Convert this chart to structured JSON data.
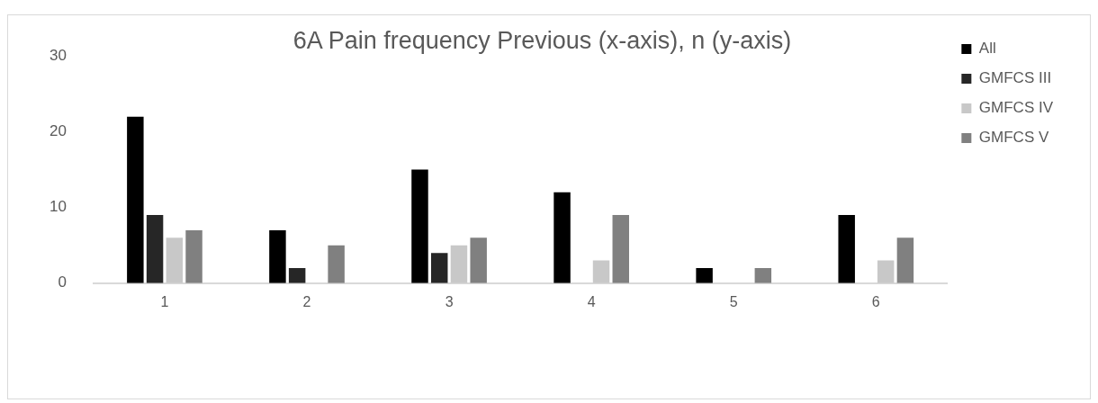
{
  "chart_data": {
    "type": "bar",
    "title": "6A Pain frequency Previous (x-axis), n (y-axis)",
    "categories": [
      "1",
      "2",
      "3",
      "4",
      "5",
      "6"
    ],
    "series": [
      {
        "name": "All",
        "color": "#000000",
        "values": [
          22,
          7,
          15,
          12,
          2,
          9
        ]
      },
      {
        "name": "GMFCS III",
        "color": "#262626",
        "values": [
          9,
          2,
          4,
          0,
          0,
          0
        ]
      },
      {
        "name": "GMFCS IV",
        "color": "#c8c8c8",
        "values": [
          6,
          0,
          5,
          3,
          0,
          3
        ]
      },
      {
        "name": "GMFCS V",
        "color": "#808080",
        "values": [
          7,
          5,
          6,
          9,
          2,
          6
        ]
      }
    ],
    "ylim": [
      0,
      30
    ],
    "yticks": [
      0,
      10,
      20,
      30
    ],
    "grid": false,
    "legend": "top right"
  }
}
